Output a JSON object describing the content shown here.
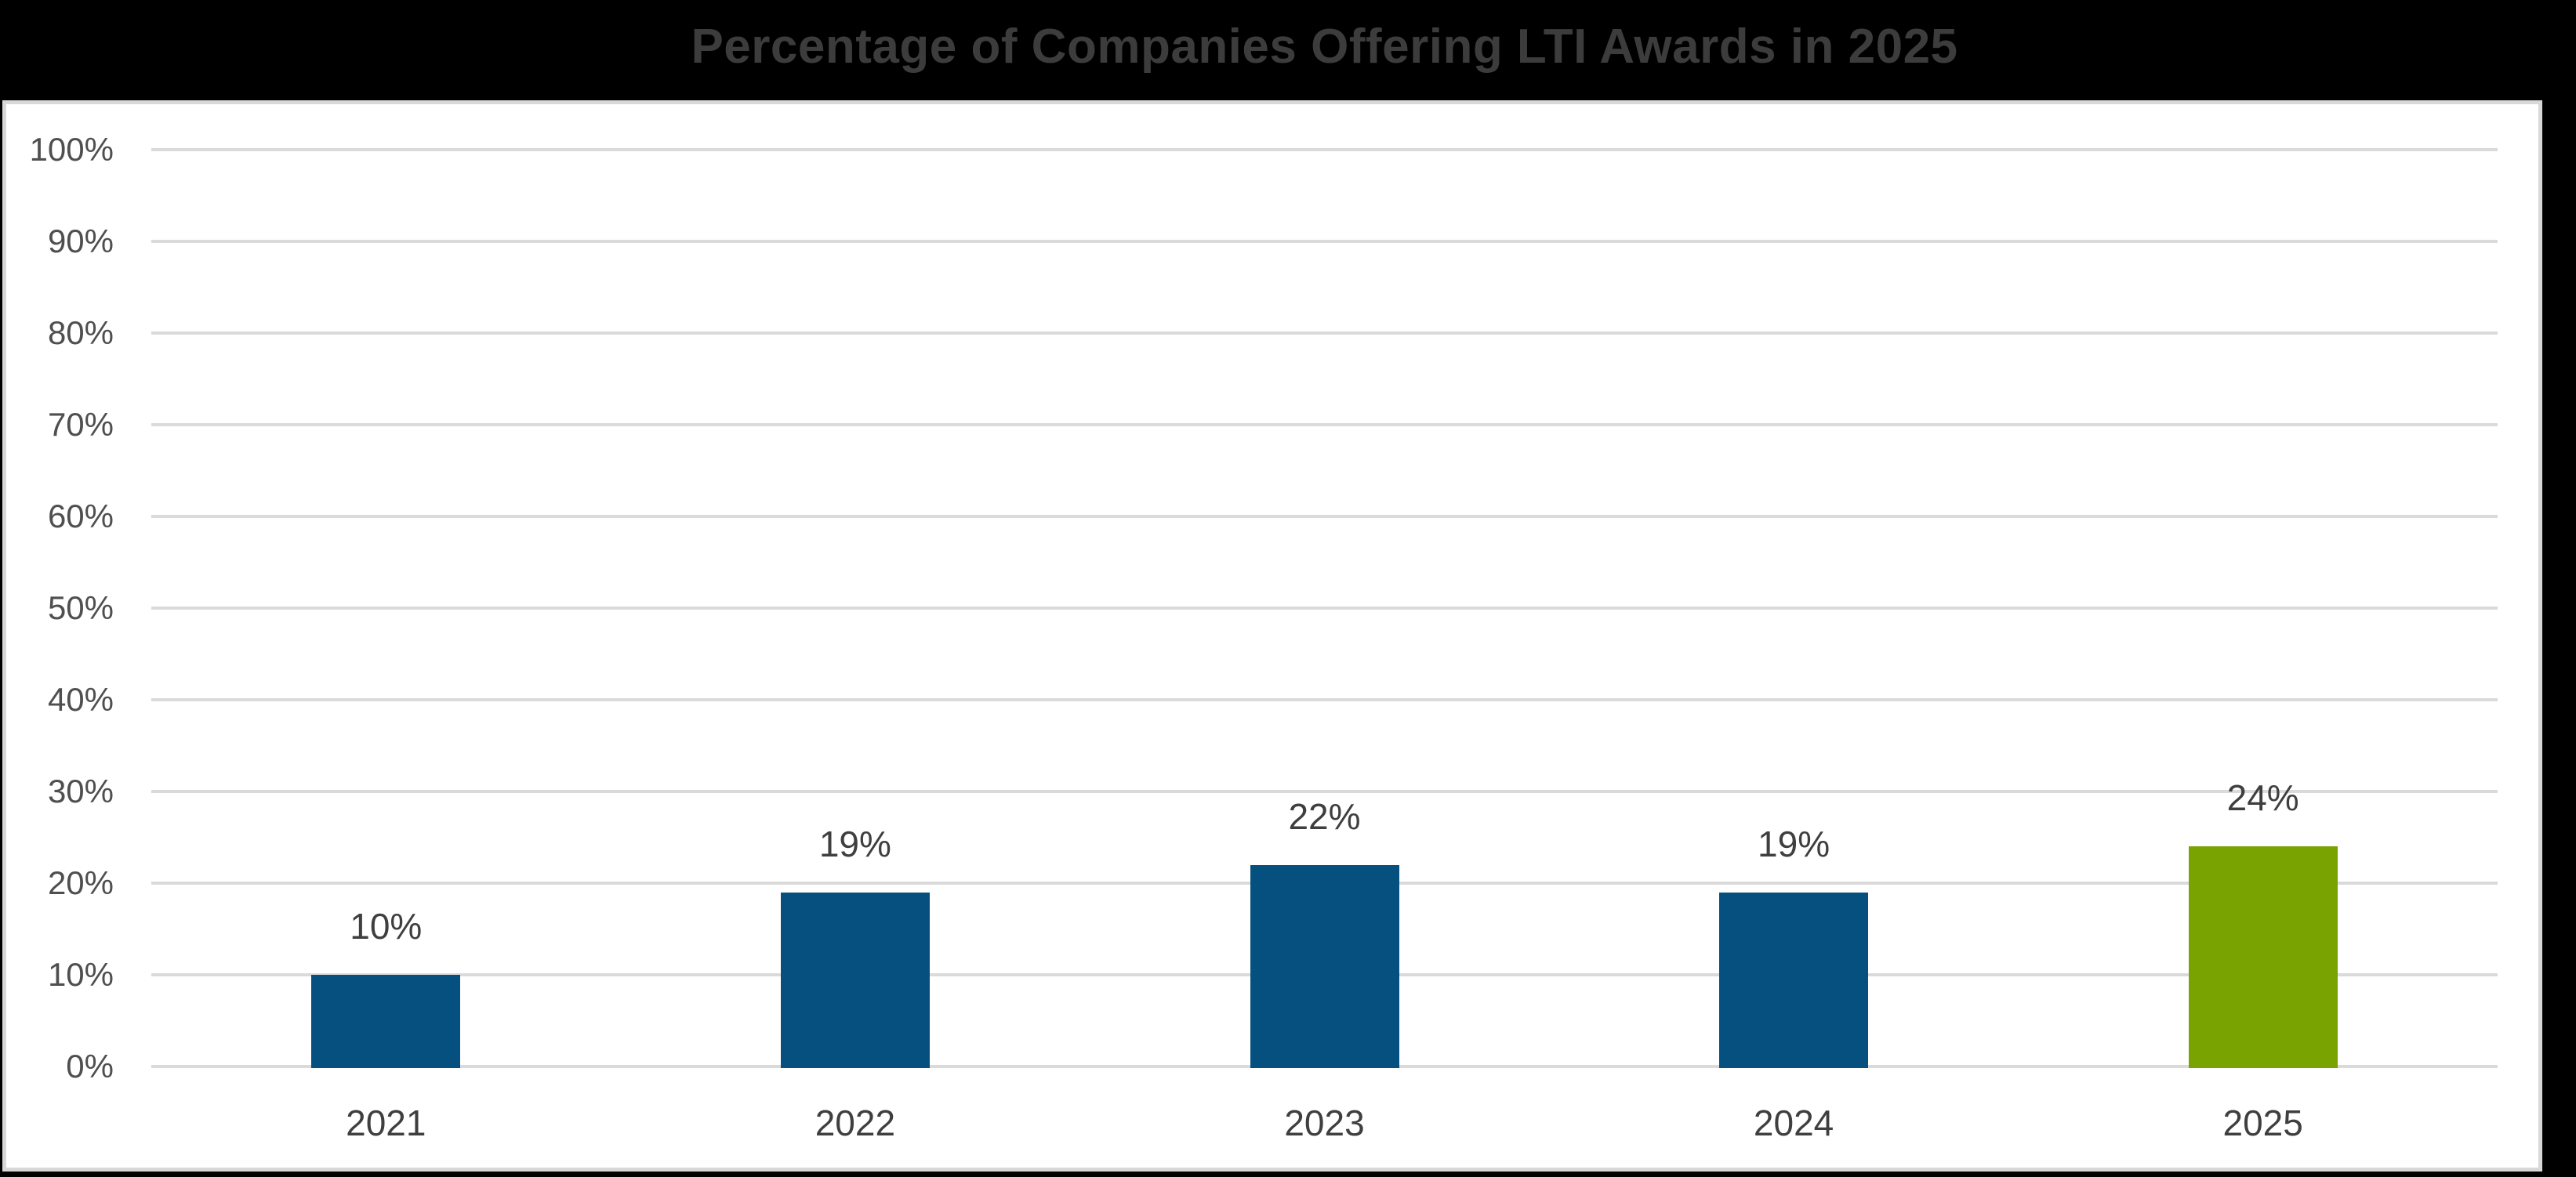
{
  "colors": {
    "background": "#000000",
    "panel_background": "#FFFFFF",
    "panel_border": "#D8D8D8",
    "gridline": "#DADADA",
    "title_text": "#3C3C3C",
    "axis_text": "#4F4F4F",
    "data_label_text": "#3F3F3F",
    "bar_default": "#05507E",
    "bar_highlight": "#79A300"
  },
  "chart_data": {
    "type": "bar",
    "title": "Percentage of Companies Offering LTI Awards in 2025",
    "categories": [
      "2021",
      "2022",
      "2023",
      "2024",
      "2025"
    ],
    "values": [
      10,
      19,
      22,
      19,
      24
    ],
    "data_labels": [
      "10%",
      "19%",
      "22%",
      "19%",
      "24%"
    ],
    "series_colors": [
      "#05507E",
      "#05507E",
      "#05507E",
      "#05507E",
      "#79A300"
    ],
    "highlighted_category": "2025",
    "xlabel": "",
    "ylabel": "",
    "ylim": [
      0,
      100
    ],
    "ytick_step": 10,
    "ytick_labels": [
      "0%",
      "10%",
      "20%",
      "30%",
      "40%",
      "50%",
      "60%",
      "70%",
      "80%",
      "90%",
      "100%"
    ],
    "grid": true,
    "legend": "none"
  }
}
